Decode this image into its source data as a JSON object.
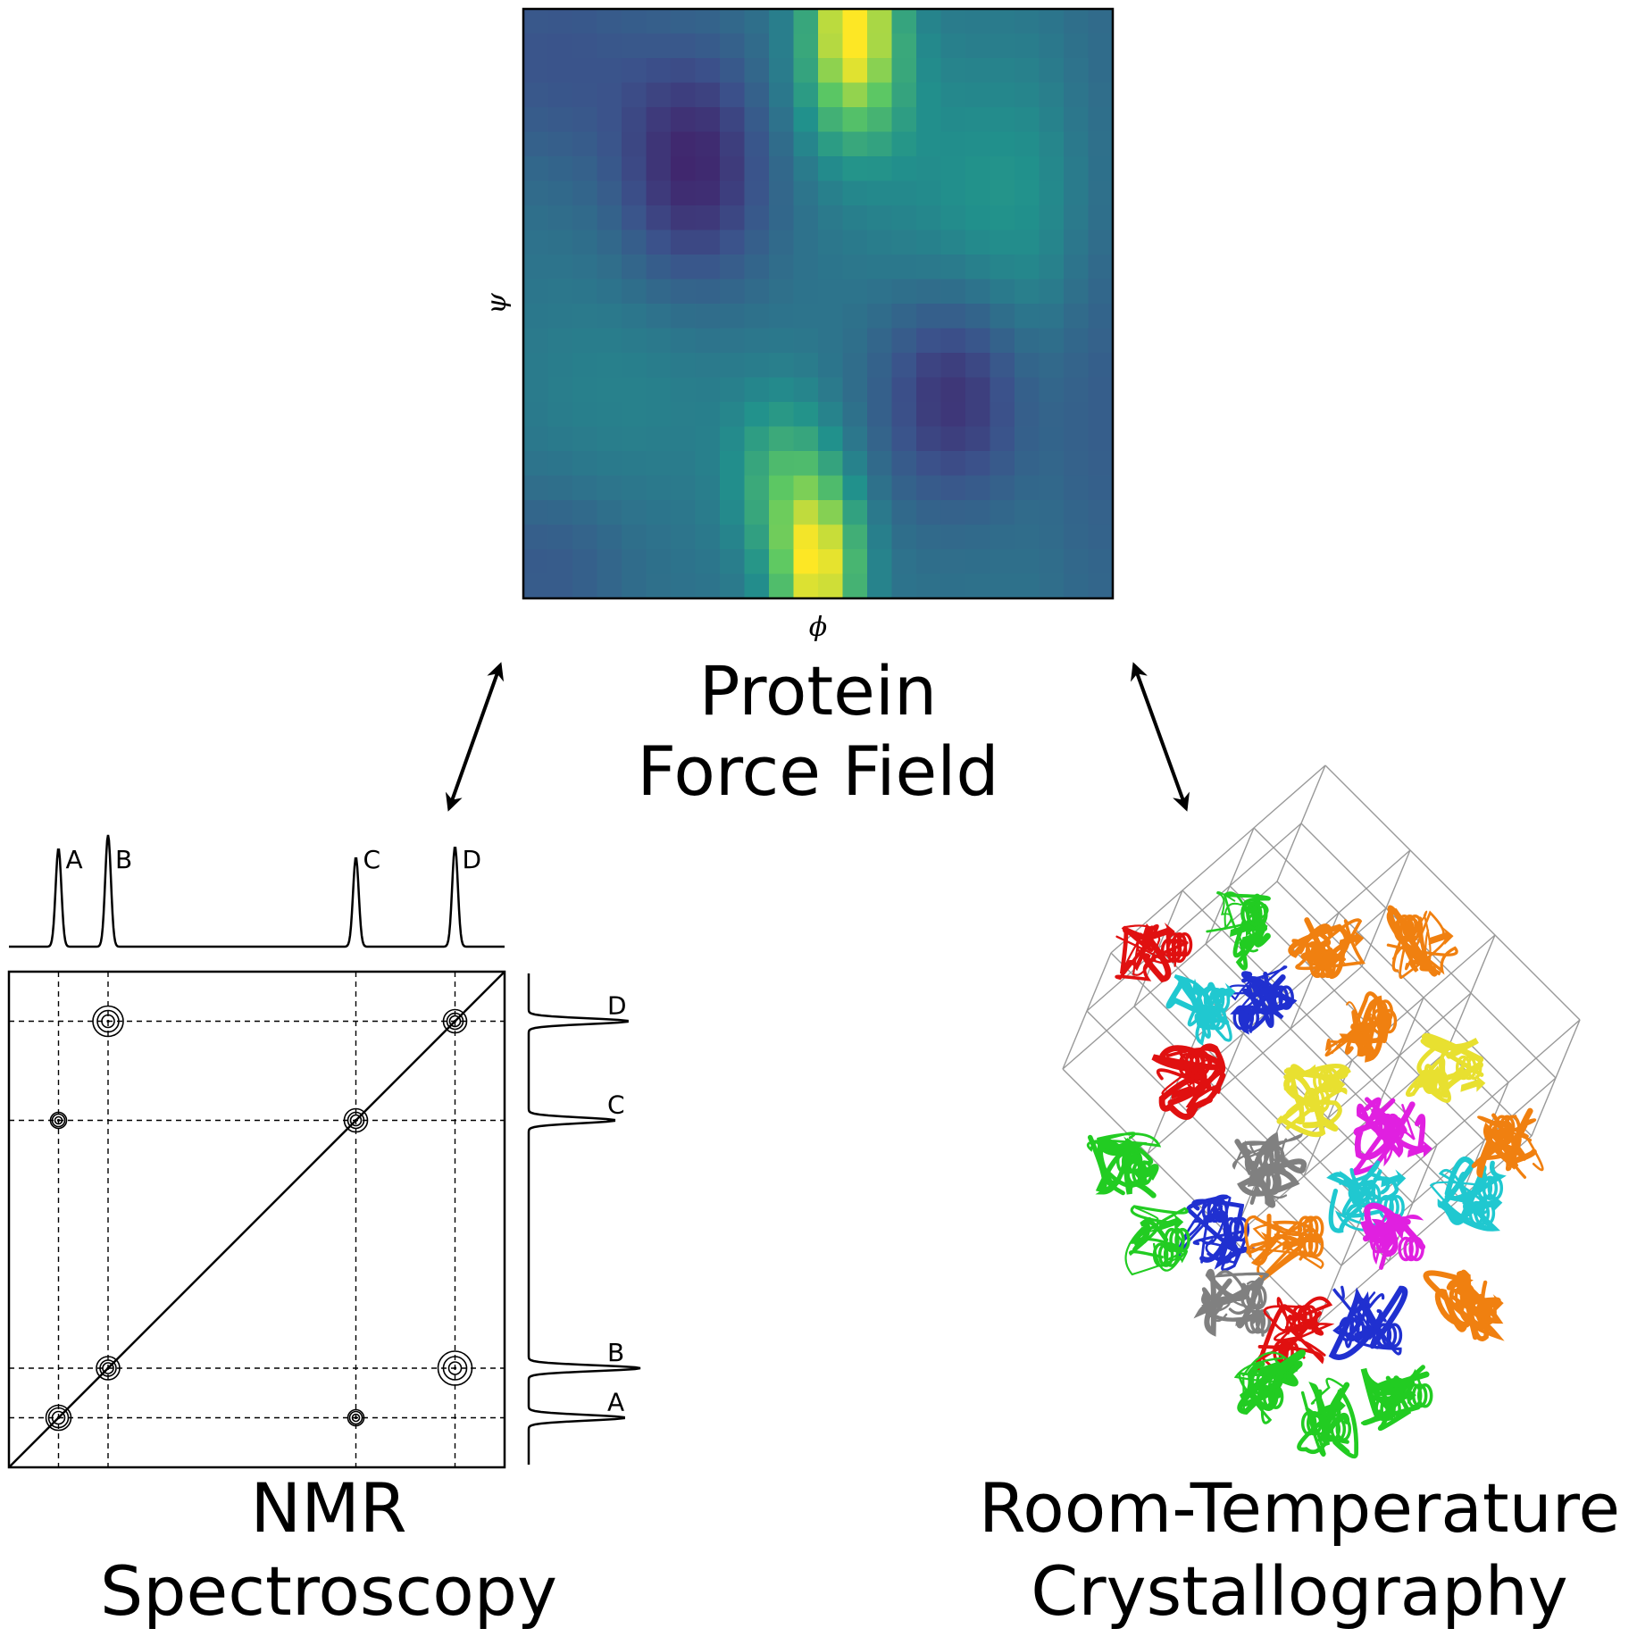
{
  "force_field": {
    "title_line1": "Protein",
    "title_line2": "Force Field",
    "x_axis_symbol": "ϕ",
    "y_axis_symbol": "ψ",
    "grid_cols": 24,
    "grid_rows": 24,
    "colormap": "viridis"
  },
  "nmr": {
    "title_line1": "NMR",
    "title_line2": "Spectroscopy",
    "peaks": [
      {
        "label": "A",
        "position": 0.1
      },
      {
        "label": "B",
        "position": 0.2
      },
      {
        "label": "C",
        "position": 0.7
      },
      {
        "label": "D",
        "position": 0.9
      }
    ],
    "cross_peaks": [
      {
        "row": "D",
        "col": "B"
      },
      {
        "row": "C",
        "col": "A"
      },
      {
        "row": "A",
        "col": "C"
      },
      {
        "row": "B",
        "col": "D"
      }
    ]
  },
  "crystallography": {
    "title_line1": "Room-Temperature",
    "title_line2": "Crystallography",
    "protein_colors": [
      "#e01010",
      "#22cc22",
      "#2030d0",
      "#f08010",
      "#e020e0",
      "#e8e030",
      "#20c8d0",
      "#808080"
    ]
  },
  "colors": {
    "line": "#000000",
    "lattice": "#999999"
  }
}
